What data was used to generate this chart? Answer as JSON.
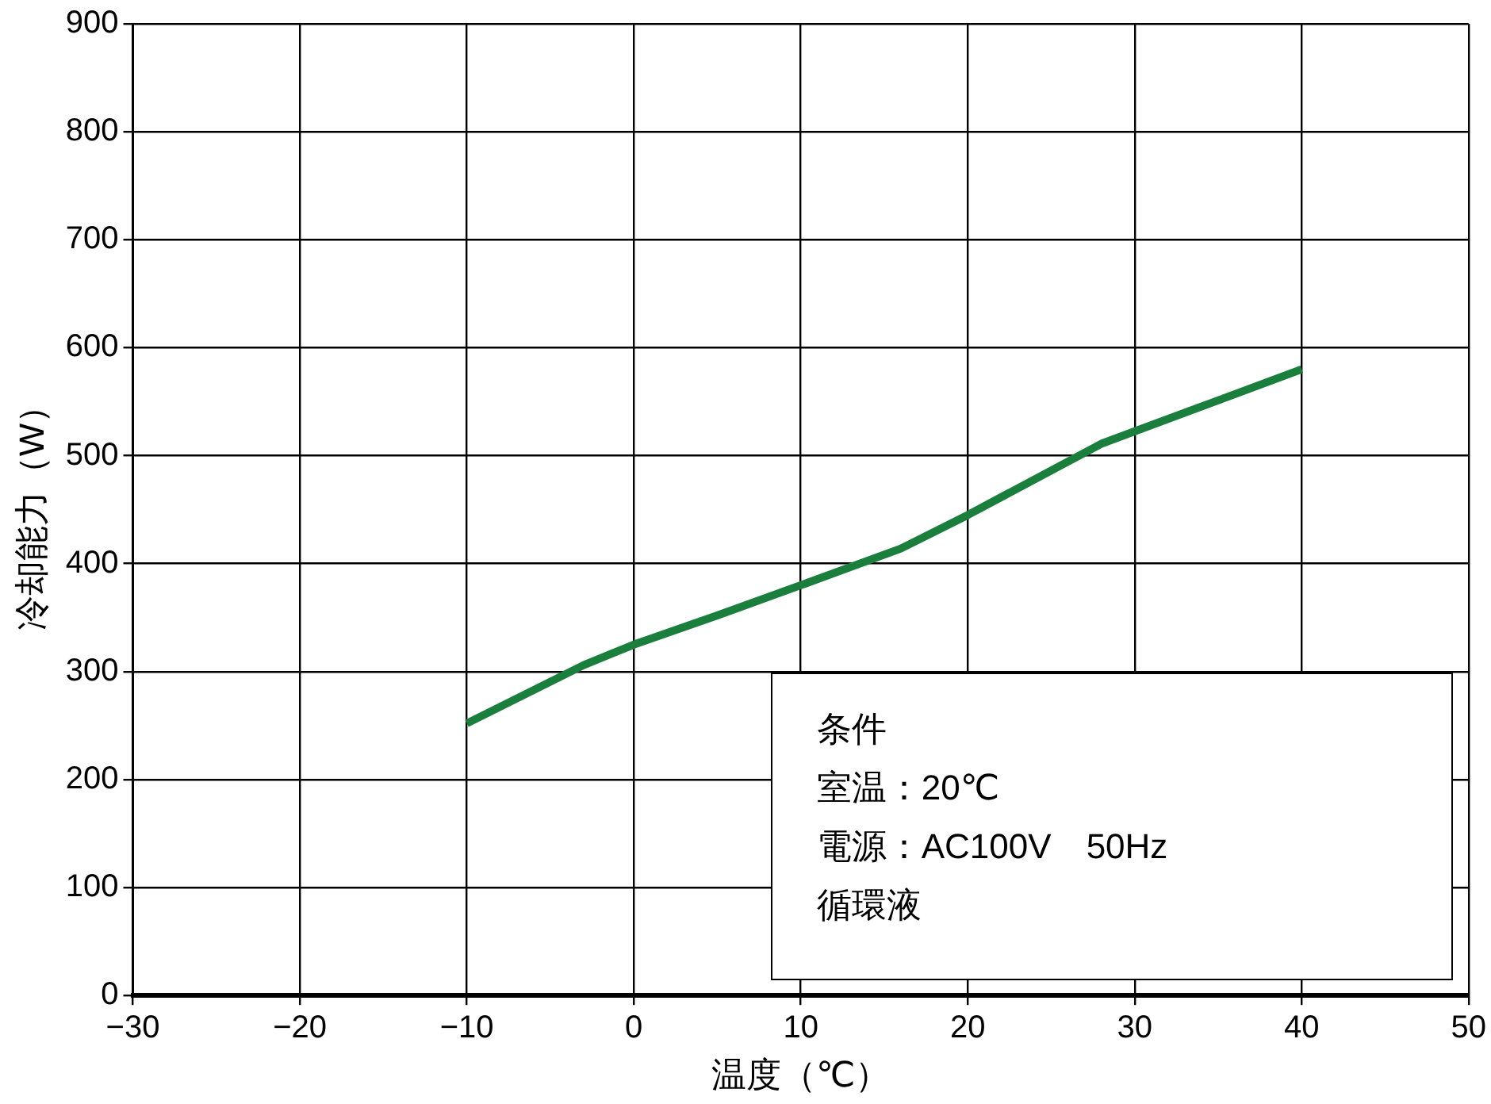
{
  "chart_data": {
    "type": "line",
    "xlabel": "温度（℃）",
    "ylabel": "冷却能力（W）",
    "x": [
      -10,
      -3,
      0,
      5,
      10,
      16,
      20,
      28,
      40
    ],
    "series": [
      {
        "color": "#1a7f3c",
        "values": [
          252,
          306,
          325,
          352,
          380,
          414,
          445,
          511,
          580
        ]
      }
    ],
    "xlim": [
      -30,
      50
    ],
    "xticks": [
      {
        "value": -30,
        "label": "−30"
      },
      {
        "value": -20,
        "label": "−20"
      },
      {
        "value": -10,
        "label": "−10"
      },
      0,
      10,
      20,
      30,
      40,
      50
    ],
    "ylim": [
      0,
      900
    ],
    "yticks": [
      0,
      100,
      200,
      300,
      400,
      500,
      600,
      700,
      800,
      900
    ],
    "grid": true,
    "legend": false,
    "marker": "none",
    "line_style": "solid",
    "annotations": [
      "条件",
      "室温：20℃",
      "電源：AC100V　50Hz",
      "循環液"
    ]
  }
}
